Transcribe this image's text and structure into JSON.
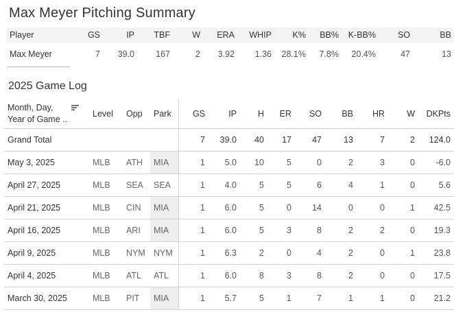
{
  "title": "Max Meyer Pitching Summary",
  "summary": {
    "headers": [
      "Player",
      "GS",
      "IP",
      "TBF",
      "W",
      "ERA",
      "WHIP",
      "K%",
      "BB%",
      "K-BB%",
      "SO",
      "BB"
    ],
    "row": [
      "Max Meyer",
      "7",
      "39.0",
      "167",
      "2",
      "3.92",
      "1.36",
      "28.1%",
      "7.8%",
      "20.4%",
      "47",
      "13"
    ]
  },
  "subtitle": "2025 Game Log",
  "gamelog": {
    "headers": {
      "date": "Month, Day,\nYear of Game ..",
      "level": "Level",
      "opp": "Opp",
      "park": "Park",
      "gs": "GS",
      "ip": "IP",
      "h": "H",
      "er": "ER",
      "so": "SO",
      "bb": "BB",
      "hr": "HR",
      "w": "W",
      "dkpts": "DKPts"
    },
    "total": {
      "label": "Grand Total",
      "gs": "7",
      "ip": "39.0",
      "h": "40",
      "er": "17",
      "so": "47",
      "bb": "13",
      "hr": "7",
      "w": "2",
      "dkpts": "124.0"
    },
    "rows": [
      {
        "date": "May 3, 2025",
        "level": "MLB",
        "opp": "ATH",
        "park": "MIA",
        "gs": "1",
        "ip": "5.0",
        "h": "10",
        "er": "5",
        "so": "0",
        "bb": "2",
        "hr": "3",
        "w": "0",
        "dkpts": "-6.0"
      },
      {
        "date": "April 27, 2025",
        "level": "MLB",
        "opp": "SEA",
        "park": "SEA",
        "gs": "1",
        "ip": "4.0",
        "h": "5",
        "er": "5",
        "so": "6",
        "bb": "4",
        "hr": "1",
        "w": "0",
        "dkpts": "5.6"
      },
      {
        "date": "April 21, 2025",
        "level": "MLB",
        "opp": "CIN",
        "park": "MIA",
        "gs": "1",
        "ip": "6.0",
        "h": "5",
        "er": "0",
        "so": "14",
        "bb": "0",
        "hr": "0",
        "w": "1",
        "dkpts": "42.5"
      },
      {
        "date": "April 16, 2025",
        "level": "MLB",
        "opp": "ARI",
        "park": "MIA",
        "gs": "1",
        "ip": "6.0",
        "h": "5",
        "er": "3",
        "so": "8",
        "bb": "2",
        "hr": "2",
        "w": "0",
        "dkpts": "19.3"
      },
      {
        "date": "April 9, 2025",
        "level": "MLB",
        "opp": "NYM",
        "park": "NYM",
        "gs": "1",
        "ip": "6.3",
        "h": "2",
        "er": "0",
        "so": "4",
        "bb": "2",
        "hr": "0",
        "w": "1",
        "dkpts": "23.8"
      },
      {
        "date": "April 4, 2025",
        "level": "MLB",
        "opp": "ATL",
        "park": "ATL",
        "gs": "1",
        "ip": "6.0",
        "h": "8",
        "er": "3",
        "so": "8",
        "bb": "2",
        "hr": "0",
        "w": "0",
        "dkpts": "17.5"
      },
      {
        "date": "March 30, 2025",
        "level": "MLB",
        "opp": "PIT",
        "park": "MIA",
        "gs": "1",
        "ip": "5.7",
        "h": "5",
        "er": "1",
        "so": "7",
        "bb": "1",
        "hr": "1",
        "w": "0",
        "dkpts": "21.2"
      }
    ]
  },
  "colors": {
    "home_park_bg": "#eeeeee",
    "band_bg": "#f4f4f4",
    "grid": "#d4d4d4"
  },
  "icons": {
    "sort": "sort-descending-icon"
  }
}
